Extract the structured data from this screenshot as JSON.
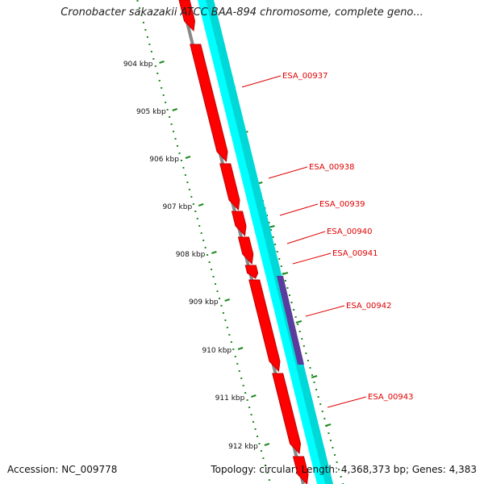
{
  "title": "Cronobacter sakazakii ATCC BAA-894 chromosome, complete geno...",
  "accession": "Accession: NC_009778",
  "topology": "Topology: circular; Length: 4,368,373 bp; Genes: 4,383",
  "kbp_labels": [
    "904 kbp",
    "905 kbp",
    "906 kbp",
    "907 kbp",
    "908 kbp",
    "909 kbp",
    "910 kbp",
    "911 kbp",
    "912 kbp"
  ],
  "genes": [
    "ESA_00937",
    "ESA_00938",
    "ESA_00939",
    "ESA_00940",
    "ESA_00941",
    "ESA_00942",
    "ESA_00943"
  ],
  "colors": {
    "cds": "#ff0000",
    "cds_dark": "#c00000",
    "backbone": "#888888",
    "track_cyan": "#00ffff",
    "track_highlight": "#5a3c9c",
    "ticks": "#1f8a1f",
    "label": "#e00000"
  }
}
